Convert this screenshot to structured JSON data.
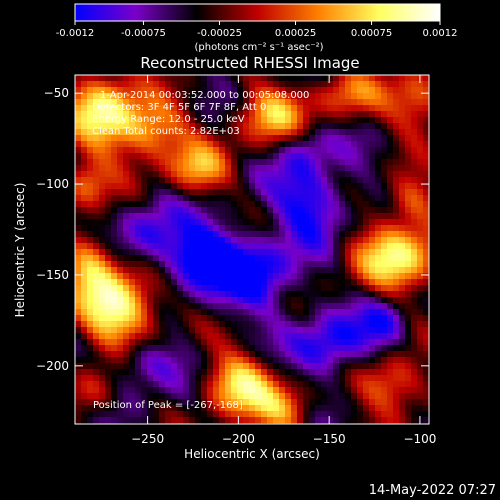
{
  "colorbar": {
    "ticks": [
      "-0.0012",
      "-0.00075",
      "-0.00025",
      "0.00025",
      "0.00075",
      "0.0012"
    ],
    "range": [
      -0.0012,
      0.0012
    ],
    "label": "(photons cm⁻² s⁻¹ asec⁻²)",
    "colors": [
      "#0000ff",
      "#7a00c8",
      "#000000",
      "#c00000",
      "#ff8000",
      "#ffff60",
      "#ffffff"
    ]
  },
  "chart_data": {
    "type": "heatmap",
    "title": "Reconstructed RHESSI Image",
    "xlabel": "Heliocentric X (arcsec)",
    "ylabel": "Heliocentric Y (arcsec)",
    "xlim": [
      -290,
      -95
    ],
    "ylim": [
      -232,
      -40
    ],
    "x_ticks": [
      -250,
      -200,
      -150,
      -100
    ],
    "y_ticks": [
      -50,
      -100,
      -150,
      -200
    ],
    "annotations": [
      "1-Apr-2014 00:03:52.000 to 00:05:08.000",
      "Detectors: 3F 4F 5F 6F 7F 8F, Att 0",
      "Energy Range: 12.0 - 25.0 keV",
      "Clean     Total counts: 2.82E+03"
    ],
    "peak_label": "Position of Peak = [-267,-168]",
    "peak": [
      -267,
      -168
    ],
    "blobs": [
      {
        "x": -275,
        "y": -60,
        "sx": 14,
        "sy": 16,
        "v": 0.0012
      },
      {
        "x": -248,
        "y": -70,
        "sx": 14,
        "sy": 12,
        "v": 0.001
      },
      {
        "x": -222,
        "y": -92,
        "sx": 12,
        "sy": 10,
        "v": 0.0009
      },
      {
        "x": -182,
        "y": -62,
        "sx": 14,
        "sy": 12,
        "v": 0.001
      },
      {
        "x": -140,
        "y": -50,
        "sx": 14,
        "sy": 10,
        "v": 0.0007
      },
      {
        "x": -100,
        "y": -55,
        "sx": 12,
        "sy": 14,
        "v": 0.0008
      },
      {
        "x": -285,
        "y": -100,
        "sx": 10,
        "sy": 10,
        "v": 0.0007
      },
      {
        "x": -267,
        "y": -168,
        "sx": 16,
        "sy": 15,
        "v": 0.0015
      },
      {
        "x": -282,
        "y": -140,
        "sx": 10,
        "sy": 12,
        "v": 0.0008
      },
      {
        "x": -112,
        "y": -140,
        "sx": 18,
        "sy": 14,
        "v": 0.0012
      },
      {
        "x": -105,
        "y": -110,
        "sx": 10,
        "sy": 10,
        "v": 0.0007
      },
      {
        "x": -200,
        "y": -210,
        "sx": 14,
        "sy": 12,
        "v": 0.0012
      },
      {
        "x": -175,
        "y": -225,
        "sx": 12,
        "sy": 10,
        "v": 0.0008
      },
      {
        "x": -115,
        "y": -210,
        "sx": 14,
        "sy": 12,
        "v": 0.0009
      },
      {
        "x": -280,
        "y": -215,
        "sx": 10,
        "sy": 10,
        "v": 0.0006
      },
      {
        "x": -220,
        "y": -140,
        "sx": 14,
        "sy": 12,
        "v": -0.0011
      },
      {
        "x": -190,
        "y": -150,
        "sx": 16,
        "sy": 14,
        "v": -0.0008
      },
      {
        "x": -160,
        "y": -110,
        "sx": 14,
        "sy": 14,
        "v": -0.0008
      },
      {
        "x": -150,
        "y": -190,
        "sx": 14,
        "sy": 12,
        "v": -0.0008
      },
      {
        "x": -248,
        "y": -128,
        "sx": 12,
        "sy": 12,
        "v": -0.0006
      },
      {
        "x": -252,
        "y": -198,
        "sx": 14,
        "sy": 10,
        "v": -0.0006
      },
      {
        "x": -165,
        "y": -80,
        "sx": 10,
        "sy": 10,
        "v": -0.0005
      },
      {
        "x": -120,
        "y": -178,
        "sx": 10,
        "sy": 10,
        "v": -0.0006
      }
    ],
    "grid": false
  },
  "timestamp": "14-May-2022 07:27"
}
